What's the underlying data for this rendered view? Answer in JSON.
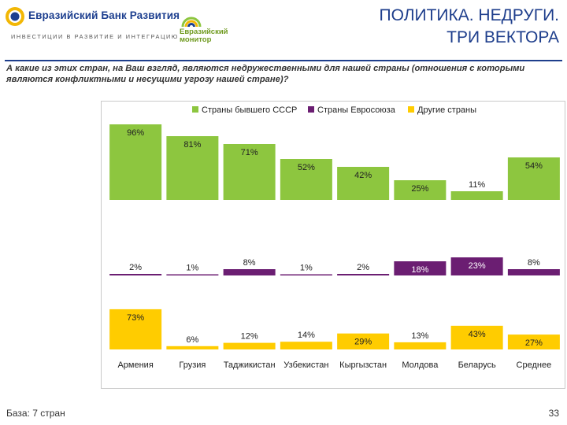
{
  "header": {
    "bank_name": "Евразийский Банк Развития",
    "bank_tagline": "ИНВЕСТИЦИИ В РАЗВИТИЕ И ИНТЕГРАЦИЮ",
    "monitor_line1": "Евразийский",
    "monitor_line2": "монитор",
    "title_line1": "ПОЛИТИКА. НЕДРУГИ.",
    "title_line2": "ТРИ ВЕКТОРА"
  },
  "question": "А какие из этих стран, на Ваш взгляд, являются недружественными для нашей страны (отношения с которыми являются конфликтными и несущими угрозу нашей стране)?",
  "footer": {
    "base": "База: 7 стран",
    "page_number": "33"
  },
  "colors": {
    "green": "#8dc63f",
    "purple": "#6b1e72",
    "yellow": "#ffcc00",
    "brand_blue": "#1e3e8c"
  },
  "chart_data": {
    "type": "bar",
    "layout": "three stacked panels sharing the category axis",
    "title": "",
    "xlabel": "",
    "ylabel": "",
    "ylim": [
      0,
      100
    ],
    "grid": false,
    "legend_position": "top",
    "categories": [
      "Армения",
      "Грузия",
      "Таджикистан",
      "Узбекистан",
      "Кыргызстан",
      "Молдова",
      "Беларусь",
      "Среднее"
    ],
    "series": [
      {
        "name": "Страны бывшего СССР",
        "color": "#8dc63f",
        "values": [
          96,
          81,
          71,
          52,
          42,
          25,
          11,
          54
        ],
        "labels": [
          "96%",
          "81%",
          "71%",
          "52%",
          "42%",
          "25%",
          "11%",
          "54%"
        ]
      },
      {
        "name": "Страны Евросоюза",
        "color": "#6b1e72",
        "values": [
          2,
          1,
          8,
          1,
          2,
          18,
          23,
          8
        ],
        "labels": [
          "2%",
          "1%",
          "8%",
          "1%",
          "2%",
          "18%",
          "23%",
          "8%"
        ]
      },
      {
        "name": "Другие страны",
        "color": "#ffcc00",
        "values": [
          73,
          6,
          12,
          14,
          29,
          13,
          43,
          27
        ],
        "labels": [
          "73%",
          "6%",
          "12%",
          "14%",
          "29%",
          "13%",
          "43%",
          "27%"
        ]
      }
    ]
  }
}
